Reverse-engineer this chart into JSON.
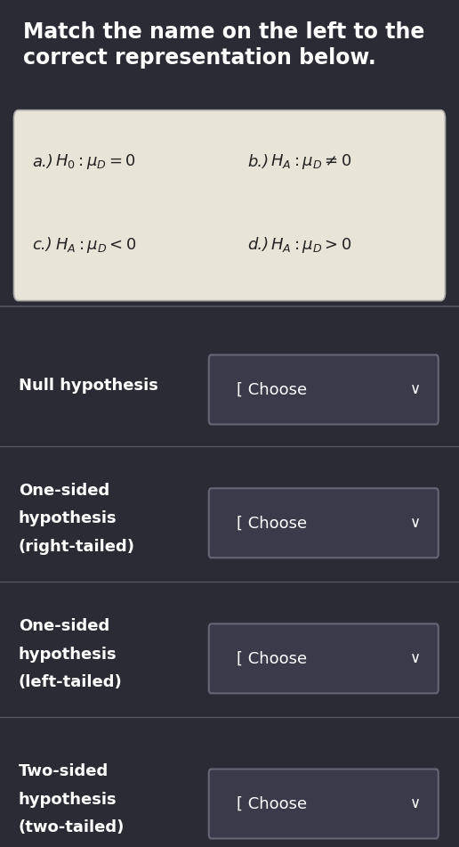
{
  "title": "Match the name on the left to the\ncorrect representation below.",
  "title_fontsize": 17,
  "bg_color": "#2b2b35",
  "text_color": "#ffffff",
  "formula_box_bg": "#e8e4d8",
  "formulas": [
    {
      "label": "a.)",
      "expr": "$H_0: \\mu_D = 0$",
      "col": 0
    },
    {
      "label": "b.)",
      "expr": "$H_A: \\mu_D \\neq 0$",
      "col": 1
    },
    {
      "label": "c.)",
      "expr": "$H_A: \\mu_D < 0$",
      "col": 0
    },
    {
      "label": "d.)",
      "expr": "$H_A: \\mu_D > 0$",
      "col": 1
    }
  ],
  "rows": [
    {
      "label": "Null hypothesis"
    },
    {
      "label": "One-sided\nhypothesis\n(right-tailed)"
    },
    {
      "label": "One-sided\nhypothesis\n(left-tailed)"
    },
    {
      "label": "Two-sided\nhypothesis\n(two-tailed)"
    }
  ],
  "btn_color": "#3a3a4a",
  "btn_border": "#666677",
  "separator_color": "#555566",
  "label_fontsize": 13,
  "btn_fontsize": 13
}
